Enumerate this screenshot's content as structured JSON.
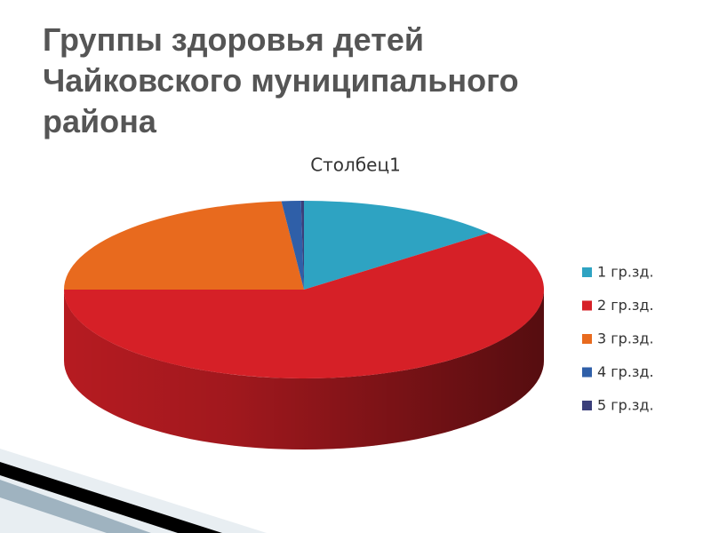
{
  "chart_data": {
    "type": "pie",
    "title": "Группы здоровья детей Чайковского муниципального района",
    "subtitle": "Столбец1",
    "categories": [
      "1 гр.зд.",
      "2 гр.зд.",
      "3 гр.зд.",
      "4 гр.зд.",
      "5 гр.зд."
    ],
    "values": [
      14,
      61,
      23.5,
      1.3,
      0.2
    ],
    "colors": [
      "#2ea3c2",
      "#d62027",
      "#e86a1e",
      "#2f5fa8",
      "#3b3f7a"
    ],
    "legend": "right"
  }
}
